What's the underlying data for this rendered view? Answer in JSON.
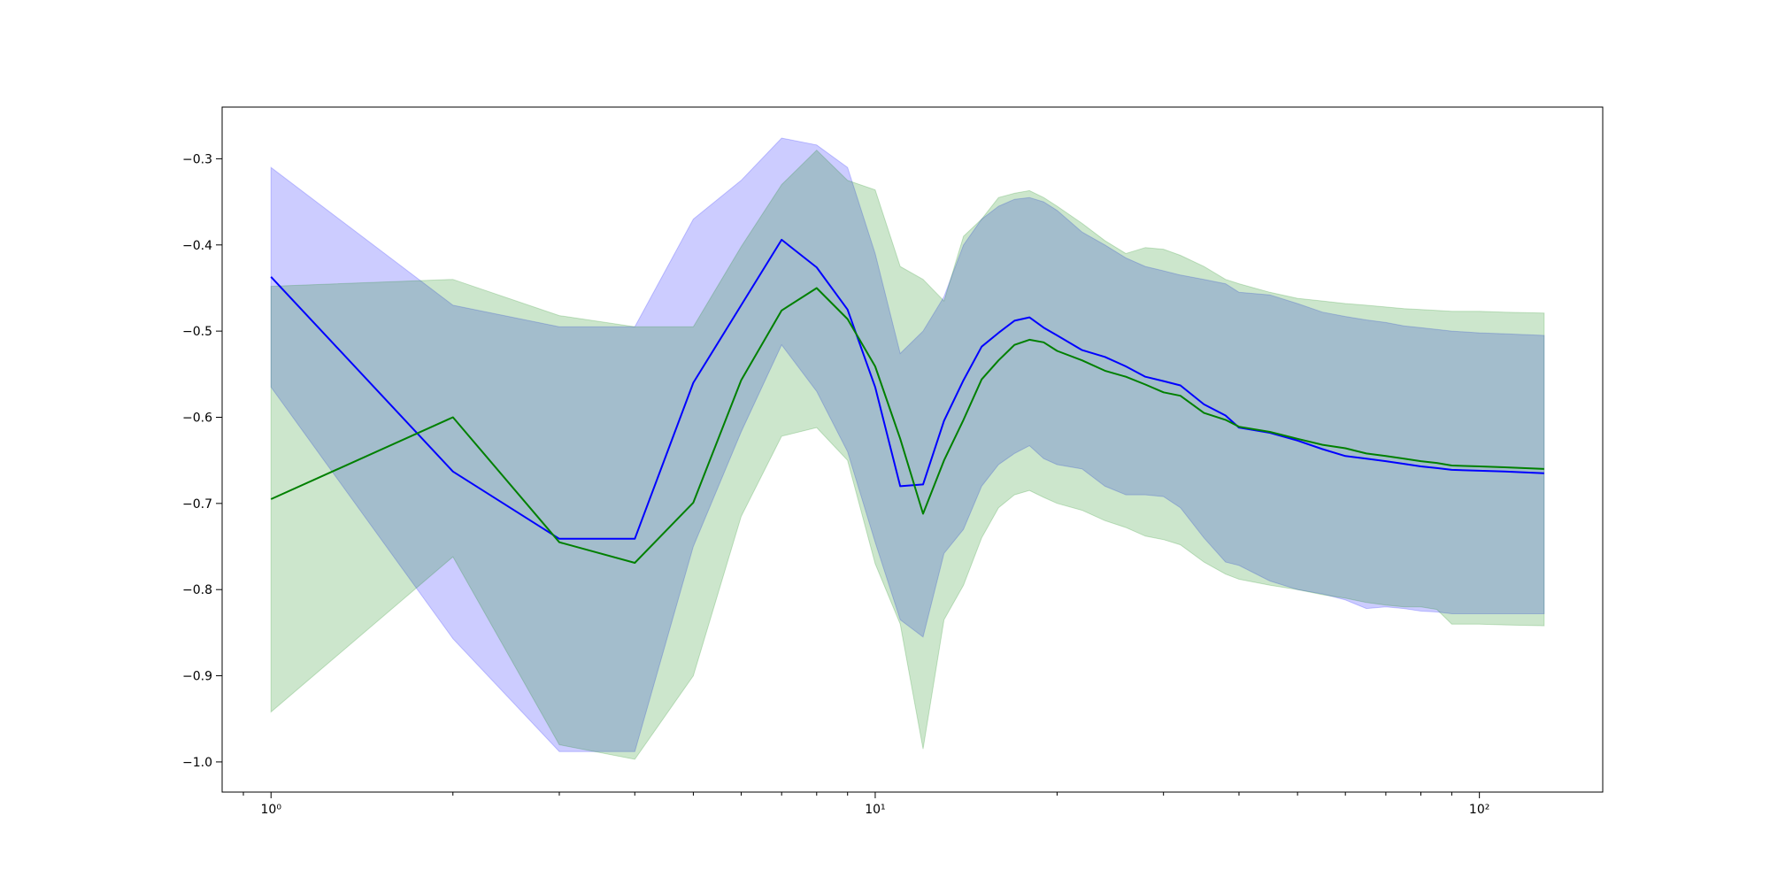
{
  "chart_data": {
    "type": "line",
    "title": "",
    "xlabel": "",
    "ylabel": "",
    "x_scale": "log",
    "xlim": [
      0.83,
      160
    ],
    "ylim": [
      -1.035,
      -0.24
    ],
    "grid": false,
    "legend": "none",
    "x_ticks": [
      {
        "value": 1,
        "label": "10⁰"
      },
      {
        "value": 10,
        "label": "10¹"
      },
      {
        "value": 100,
        "label": "10²"
      }
    ],
    "y_ticks": [
      {
        "value": -0.3,
        "label": "−0.3"
      },
      {
        "value": -0.4,
        "label": "−0.4"
      },
      {
        "value": -0.5,
        "label": "−0.5"
      },
      {
        "value": -0.6,
        "label": "−0.6"
      },
      {
        "value": -0.7,
        "label": "−0.7"
      },
      {
        "value": -0.8,
        "label": "−0.8"
      },
      {
        "value": -0.9,
        "label": "−0.9"
      },
      {
        "value": -1.0,
        "label": "−1.0"
      }
    ],
    "series": [
      {
        "color": "#0000ff",
        "band_color": "#0000ff",
        "x": [
          1,
          2,
          3,
          4,
          5,
          6,
          7,
          8,
          9,
          10,
          11,
          12,
          13,
          14,
          15,
          16,
          17,
          18,
          19,
          20,
          22,
          24,
          26,
          28,
          30,
          32,
          35,
          38,
          40,
          45,
          50,
          55,
          60,
          65,
          70,
          75,
          80,
          85,
          90,
          100,
          110,
          128
        ],
        "y": [
          -0.437,
          -0.663,
          -0.741,
          -0.741,
          -0.56,
          -0.47,
          -0.394,
          -0.426,
          -0.475,
          -0.565,
          -0.68,
          -0.678,
          -0.604,
          -0.557,
          -0.518,
          -0.502,
          -0.488,
          -0.484,
          -0.496,
          -0.505,
          -0.522,
          -0.53,
          -0.541,
          -0.553,
          -0.558,
          -0.563,
          -0.585,
          -0.598,
          -0.612,
          -0.618,
          -0.627,
          -0.637,
          -0.645,
          -0.648,
          -0.651,
          -0.654,
          -0.657,
          -0.659,
          -0.661,
          -0.662,
          -0.663,
          -0.665
        ],
        "upper": [
          -0.31,
          -0.47,
          -0.495,
          -0.495,
          -0.37,
          -0.325,
          -0.276,
          -0.284,
          -0.31,
          -0.41,
          -0.526,
          -0.5,
          -0.46,
          -0.4,
          -0.37,
          -0.355,
          -0.347,
          -0.345,
          -0.35,
          -0.36,
          -0.385,
          -0.4,
          -0.415,
          -0.425,
          -0.43,
          -0.435,
          -0.44,
          -0.445,
          -0.455,
          -0.458,
          -0.468,
          -0.478,
          -0.483,
          -0.487,
          -0.49,
          -0.494,
          -0.496,
          -0.498,
          -0.5,
          -0.502,
          -0.503,
          -0.505
        ],
        "lower": [
          -0.565,
          -0.857,
          -0.988,
          -0.988,
          -0.75,
          -0.617,
          -0.516,
          -0.57,
          -0.64,
          -0.745,
          -0.835,
          -0.855,
          -0.758,
          -0.73,
          -0.68,
          -0.655,
          -0.642,
          -0.633,
          -0.648,
          -0.655,
          -0.66,
          -0.68,
          -0.69,
          -0.69,
          -0.692,
          -0.705,
          -0.74,
          -0.768,
          -0.772,
          -0.79,
          -0.8,
          -0.805,
          -0.812,
          -0.822,
          -0.82,
          -0.822,
          -0.825,
          -0.826,
          -0.828,
          -0.828,
          -0.828,
          -0.828
        ]
      },
      {
        "color": "#008000",
        "band_color": "#008000",
        "x": [
          1,
          2,
          3,
          4,
          5,
          6,
          7,
          8,
          9,
          10,
          11,
          12,
          13,
          14,
          15,
          16,
          17,
          18,
          19,
          20,
          22,
          24,
          26,
          28,
          30,
          32,
          35,
          38,
          40,
          45,
          50,
          55,
          60,
          65,
          70,
          75,
          80,
          85,
          90,
          100,
          110,
          128
        ],
        "y": [
          -0.695,
          -0.6,
          -0.745,
          -0.769,
          -0.699,
          -0.557,
          -0.476,
          -0.45,
          -0.486,
          -0.541,
          -0.625,
          -0.712,
          -0.65,
          -0.603,
          -0.556,
          -0.534,
          -0.516,
          -0.51,
          -0.513,
          -0.523,
          -0.534,
          -0.546,
          -0.553,
          -0.562,
          -0.571,
          -0.575,
          -0.595,
          -0.603,
          -0.611,
          -0.617,
          -0.625,
          -0.632,
          -0.636,
          -0.642,
          -0.645,
          -0.648,
          -0.651,
          -0.653,
          -0.656,
          -0.657,
          -0.658,
          -0.66
        ],
        "upper": [
          -0.448,
          -0.44,
          -0.482,
          -0.495,
          -0.495,
          -0.402,
          -0.33,
          -0.29,
          -0.325,
          -0.336,
          -0.425,
          -0.44,
          -0.465,
          -0.39,
          -0.37,
          -0.345,
          -0.34,
          -0.337,
          -0.345,
          -0.355,
          -0.375,
          -0.395,
          -0.41,
          -0.403,
          -0.405,
          -0.412,
          -0.425,
          -0.44,
          -0.445,
          -0.455,
          -0.462,
          -0.465,
          -0.468,
          -0.47,
          -0.472,
          -0.474,
          -0.475,
          -0.476,
          -0.477,
          -0.477,
          -0.478,
          -0.479
        ],
        "lower": [
          -0.942,
          -0.762,
          -0.98,
          -0.997,
          -0.9,
          -0.715,
          -0.622,
          -0.612,
          -0.65,
          -0.77,
          -0.84,
          -0.985,
          -0.835,
          -0.795,
          -0.74,
          -0.705,
          -0.69,
          -0.685,
          -0.693,
          -0.7,
          -0.708,
          -0.72,
          -0.728,
          -0.738,
          -0.742,
          -0.748,
          -0.768,
          -0.782,
          -0.788,
          -0.795,
          -0.8,
          -0.806,
          -0.81,
          -0.815,
          -0.818,
          -0.82,
          -0.82,
          -0.823,
          -0.84,
          -0.84,
          -0.841,
          -0.842
        ]
      }
    ]
  }
}
